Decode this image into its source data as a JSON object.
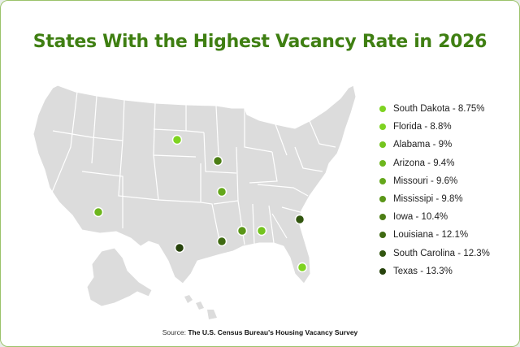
{
  "title": "States With the Highest Vacancy Rate in 2026",
  "legend": [
    {
      "label": "South Dakota - 8.75%",
      "color": "#7ed321"
    },
    {
      "label": "Florida - 8.8%",
      "color": "#7ed321"
    },
    {
      "label": "Alabama - 9%",
      "color": "#74c41f"
    },
    {
      "label": "Arizona - 9.4%",
      "color": "#6db61d"
    },
    {
      "label": "Missouri - 9.6%",
      "color": "#64a71b"
    },
    {
      "label": "Mississipi - 9.8%",
      "color": "#5a9618"
    },
    {
      "label": "Iowa - 10.4%",
      "color": "#4c7e15"
    },
    {
      "label": "Louisiana - 12.1%",
      "color": "#3f6a12"
    },
    {
      "label": "South Carolina - 12.3%",
      "color": "#32560f"
    },
    {
      "label": "Texas - 13.3%",
      "color": "#27430c"
    }
  ],
  "source": {
    "prefix": "Source:",
    "name": "The U.S. Census Bureau's Housing Vacancy Survey"
  },
  "colors": {
    "title": "#3f7f12",
    "land": "#dcdcdc",
    "border": "#ffffff"
  }
}
